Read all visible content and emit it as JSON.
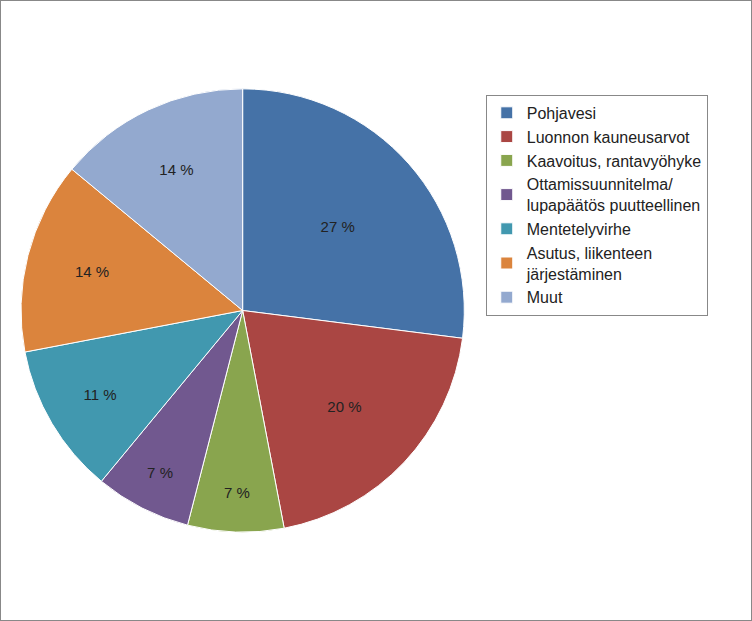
{
  "chart_data": {
    "type": "pie",
    "categories": [
      "Pohjavesi",
      "Luonnon kauneusarvot",
      "Kaavoitus, rantavyöhyke",
      "Ottamissuunnitelma/ lupapäätös puutteellinen",
      "Mentetelyvirhe",
      "Asutus, liikenteen järjestäminen",
      "Muut"
    ],
    "values": [
      27,
      20,
      7,
      7,
      11,
      14,
      14
    ],
    "value_labels": [
      "27 %",
      "20 %",
      "7 %",
      "7 %",
      "11 %",
      "14 %",
      "14 %"
    ],
    "colors": [
      "#4572A7",
      "#AA4643",
      "#89A54E",
      "#71588F",
      "#4198AF",
      "#DB843D",
      "#93A9CF"
    ],
    "data_labels": true,
    "legend": "right"
  }
}
